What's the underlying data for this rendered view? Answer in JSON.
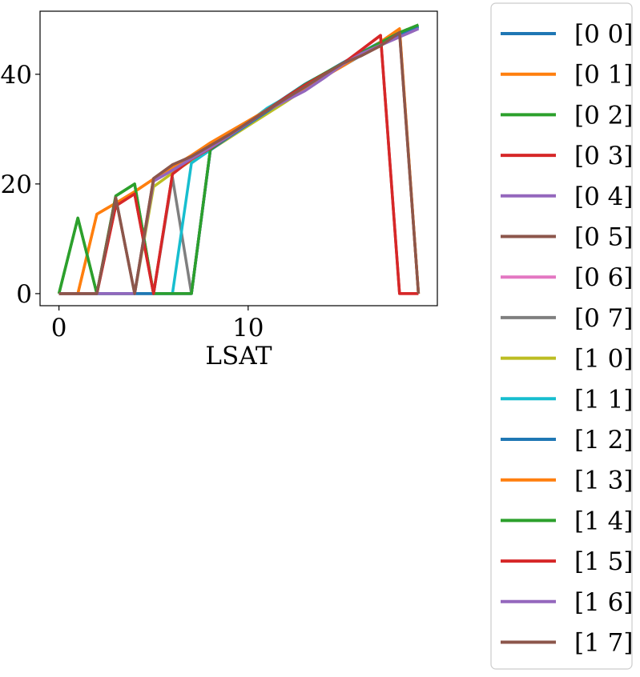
{
  "chart_data": {
    "type": "line",
    "title": "",
    "xlabel": "LSAT",
    "ylabel": "",
    "xlim": [
      -1,
      20
    ],
    "ylim": [
      -2.2,
      51.5
    ],
    "xticks": [
      0,
      10
    ],
    "xtick_labels": [
      "0",
      "10"
    ],
    "yticks": [
      0,
      20,
      40
    ],
    "ytick_labels": [
      "0",
      "20",
      "40"
    ],
    "grid": false,
    "legend_position": "outside-right",
    "series": [
      {
        "name": "[0 0]",
        "color": "#1f77b4",
        "x": [
          0,
          1,
          2,
          3,
          4,
          5,
          6,
          7,
          8,
          9,
          10,
          11,
          12,
          13,
          14,
          15,
          16,
          17,
          18,
          19
        ],
        "y": [
          0,
          0,
          0,
          0,
          0,
          0,
          0,
          0,
          26.2,
          28.8,
          31.3,
          33.6,
          35.9,
          38.2,
          40.1,
          42.1,
          44.0,
          45.9,
          47.5,
          48.8
        ]
      },
      {
        "name": "[0 1]",
        "color": "#ff7f0e",
        "x": [
          0,
          1,
          2,
          3,
          4,
          5,
          6,
          7,
          8,
          9,
          10,
          11,
          12,
          13,
          14,
          15,
          16,
          17,
          18,
          19
        ],
        "y": [
          0,
          0,
          14.5,
          16.5,
          18.6,
          20.9,
          23.1,
          25.2,
          27.5,
          29.5,
          31.5,
          33.5,
          35.5,
          37.5,
          39.5,
          41.5,
          43.6,
          45.9,
          48.3,
          0
        ]
      },
      {
        "name": "[0 2]",
        "color": "#2ca02c",
        "x": [
          0,
          1,
          2,
          3,
          4,
          5,
          6,
          7,
          8,
          9,
          10,
          11,
          12,
          13,
          14,
          15,
          16,
          17,
          18,
          19
        ],
        "y": [
          0,
          13.8,
          0,
          17.8,
          20.0,
          0,
          0,
          0,
          26.3,
          28.8,
          31.2,
          33.5,
          35.8,
          38.1,
          40.1,
          42.0,
          43.9,
          45.8,
          47.6,
          49.0
        ]
      },
      {
        "name": "[0 3]",
        "color": "#d62728",
        "x": [
          0,
          1,
          2,
          3,
          4,
          5,
          6,
          7,
          8,
          9,
          10,
          11,
          12,
          13,
          14,
          15,
          16,
          17,
          18,
          19
        ],
        "y": [
          0,
          0,
          0,
          16.0,
          18.2,
          0,
          21.8,
          24.5,
          26.5,
          28.8,
          31.2,
          33.5,
          35.8,
          38.0,
          40.0,
          41.9,
          44.5,
          47.1,
          0,
          0
        ]
      },
      {
        "name": "[0 4]",
        "color": "#9467bd",
        "x": [
          0,
          1,
          2,
          3,
          4,
          5,
          6,
          7,
          8,
          9,
          10,
          11,
          12,
          13,
          14,
          15,
          16,
          17,
          18,
          19
        ],
        "y": [
          0,
          0,
          0,
          0,
          0,
          20.5,
          22.5,
          24.6,
          26.6,
          28.8,
          31.1,
          33.4,
          35.2,
          37.0,
          39.3,
          41.8,
          43.8,
          45.3,
          46.8,
          48.3
        ]
      },
      {
        "name": "[0 5]",
        "color": "#8c564b",
        "x": [
          0,
          1,
          2,
          3,
          4,
          5,
          6,
          7,
          8,
          9,
          10,
          11,
          12,
          13,
          14,
          15,
          16,
          17,
          18,
          19
        ],
        "y": [
          0,
          0,
          0,
          17.5,
          0,
          21.0,
          23.5,
          25.0,
          27.0,
          29.0,
          31.2,
          33.4,
          35.6,
          37.7,
          39.9,
          42.0,
          43.4,
          45.2,
          47.6,
          0
        ]
      },
      {
        "name": "[0 6]",
        "color": "#e377c2",
        "x": [
          0,
          1,
          2,
          3,
          4,
          5,
          6,
          7,
          8,
          9,
          10,
          11,
          12,
          13,
          14,
          15,
          16,
          17,
          18,
          19
        ],
        "y": [
          0,
          0,
          0,
          0,
          0,
          0,
          0,
          0,
          26.3,
          28.6,
          31.0,
          33.3,
          35.5,
          37.7,
          39.8,
          41.8,
          43.7,
          45.6,
          47.3,
          48.6
        ]
      },
      {
        "name": "[0 7]",
        "color": "#7f7f7f",
        "x": [
          0,
          1,
          2,
          3,
          4,
          5,
          6,
          7,
          8,
          9,
          10,
          11,
          12,
          13,
          14,
          15,
          16,
          17,
          18,
          19
        ],
        "y": [
          0,
          0,
          0,
          0,
          0,
          0,
          21.2,
          0,
          26.2,
          28.6,
          31.0,
          33.2,
          35.4,
          37.6,
          39.7,
          41.7,
          43.7,
          45.6,
          47.3,
          48.6
        ]
      },
      {
        "name": "[1 0]",
        "color": "#bcbd22",
        "x": [
          0,
          1,
          2,
          3,
          4,
          5,
          6,
          7,
          8,
          9,
          10,
          11,
          12,
          13,
          14,
          15,
          16,
          17,
          18,
          19
        ],
        "y": [
          0,
          0,
          0,
          0,
          0,
          19.5,
          22.0,
          24.3,
          26.2,
          28.4,
          30.6,
          32.8,
          35.0,
          37.3,
          39.5,
          41.6,
          43.6,
          45.5,
          47.2,
          48.6
        ]
      },
      {
        "name": "[1 1]",
        "color": "#17becf",
        "x": [
          0,
          1,
          2,
          3,
          4,
          5,
          6,
          7,
          8,
          9,
          10,
          11,
          12,
          13,
          14,
          15,
          16,
          17,
          18,
          19
        ],
        "y": [
          0,
          0,
          0,
          0,
          0,
          0,
          0,
          23.8,
          26.2,
          28.7,
          31.2,
          33.8,
          35.8,
          37.7,
          39.7,
          41.7,
          43.6,
          45.5,
          47.2,
          48.6
        ]
      },
      {
        "name": "[1 2]",
        "color": "#1f77b4",
        "x": [
          0,
          1,
          2,
          3,
          4,
          5,
          6,
          7,
          8,
          9,
          10,
          11,
          12,
          13,
          14,
          15,
          16,
          17,
          18,
          19
        ],
        "y": [
          0,
          0,
          0,
          0,
          0,
          0,
          0,
          0,
          26.2,
          28.6,
          30.9,
          33.2,
          35.5,
          37.7,
          39.6,
          41.5,
          43.5,
          45.5,
          47.3,
          48.7
        ]
      },
      {
        "name": "[1 3]",
        "color": "#ff7f0e",
        "x": [
          0,
          1,
          2,
          3,
          4,
          5,
          6,
          7,
          8,
          9,
          10,
          11,
          12,
          13,
          14,
          15,
          16,
          17,
          18,
          19
        ],
        "y": [
          0,
          0,
          14.5,
          16.5,
          18.6,
          20.9,
          23.1,
          25.2,
          27.5,
          29.5,
          31.5,
          33.5,
          35.5,
          37.5,
          39.5,
          41.5,
          43.6,
          45.9,
          48.3,
          0
        ]
      },
      {
        "name": "[1 4]",
        "color": "#2ca02c",
        "x": [
          0,
          1,
          2,
          3,
          4,
          5,
          6,
          7,
          8,
          9,
          10,
          11,
          12,
          13,
          14,
          15,
          16,
          17,
          18,
          19
        ],
        "y": [
          0,
          13.8,
          0,
          17.8,
          20.0,
          0,
          0,
          0,
          26.3,
          28.8,
          31.2,
          33.5,
          35.8,
          38.1,
          40.1,
          42.0,
          43.9,
          45.8,
          47.6,
          49.0
        ]
      },
      {
        "name": "[1 5]",
        "color": "#d62728",
        "x": [
          0,
          1,
          2,
          3,
          4,
          5,
          6,
          7,
          8,
          9,
          10,
          11,
          12,
          13,
          14,
          15,
          16,
          17,
          18,
          19
        ],
        "y": [
          0,
          0,
          0,
          16.0,
          18.2,
          0,
          21.8,
          24.5,
          26.5,
          28.8,
          31.2,
          33.5,
          35.8,
          38.0,
          40.0,
          41.9,
          44.5,
          47.1,
          0,
          0
        ]
      },
      {
        "name": "[1 6]",
        "color": "#9467bd",
        "x": [
          0,
          1,
          2,
          3,
          4,
          5,
          6,
          7,
          8,
          9,
          10,
          11,
          12,
          13,
          14,
          15,
          16,
          17,
          18,
          19
        ],
        "y": [
          0,
          0,
          0,
          0,
          0,
          20.5,
          22.5,
          24.6,
          26.6,
          28.8,
          31.1,
          33.4,
          35.2,
          37.0,
          39.3,
          41.8,
          43.8,
          45.3,
          46.8,
          48.3
        ]
      },
      {
        "name": "[1 7]",
        "color": "#8c564b",
        "x": [
          0,
          1,
          2,
          3,
          4,
          5,
          6,
          7,
          8,
          9,
          10,
          11,
          12,
          13,
          14,
          15,
          16,
          17,
          18,
          19
        ],
        "y": [
          0,
          0,
          0,
          17.5,
          0,
          21.0,
          23.5,
          25.0,
          27.0,
          29.0,
          31.2,
          33.4,
          35.6,
          37.7,
          39.9,
          42.0,
          43.4,
          45.2,
          47.6,
          0
        ]
      }
    ]
  }
}
